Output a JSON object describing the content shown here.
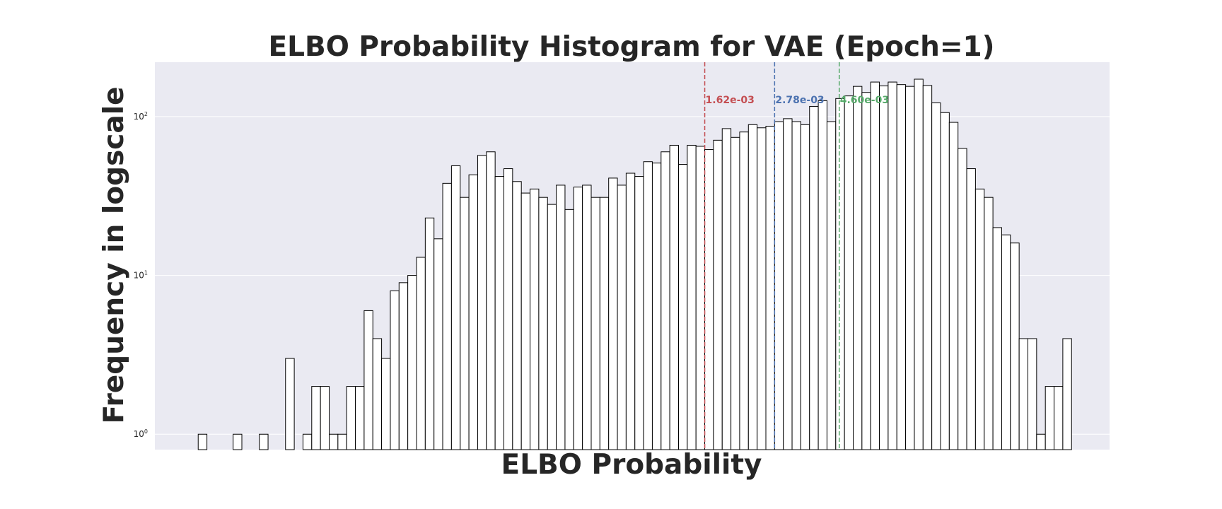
{
  "chart_data": {
    "type": "bar",
    "title": "ELBO Probability Histogram for VAE (Epoch=1)",
    "xlabel": "ELBO Probability",
    "ylabel": "Frequency in logscale",
    "y_scale": "log",
    "ylim": [
      0.8,
      220
    ],
    "y_ticks": [
      {
        "base": "10",
        "exp": "0",
        "value": 1
      },
      {
        "base": "10",
        "exp": "1",
        "value": 10
      },
      {
        "base": "10",
        "exp": "2",
        "value": 100
      }
    ],
    "grid": true,
    "background_color": "#eaeaf2",
    "bar_face_color": "#ffffff",
    "bar_edge_color": "#000000",
    "counts": [
      0,
      0,
      0,
      0,
      0,
      1,
      0,
      0,
      0,
      1,
      0,
      0,
      1,
      0,
      0,
      3,
      0,
      1,
      2,
      2,
      1,
      1,
      2,
      2,
      6,
      4,
      3,
      8,
      9,
      10,
      13,
      23,
      17,
      38,
      49,
      31,
      43,
      57,
      60,
      42,
      47,
      39,
      33,
      35,
      31,
      28,
      37,
      26,
      36,
      37,
      31,
      31,
      41,
      37,
      44,
      42,
      52,
      51,
      60,
      66,
      50,
      66,
      65,
      62,
      71,
      84,
      74,
      80,
      89,
      85,
      87,
      93,
      97,
      93,
      89,
      116,
      126,
      93,
      130,
      135,
      155,
      142,
      165,
      156,
      165,
      159,
      155,
      172,
      157,
      122,
      106,
      92,
      63,
      47,
      35,
      31,
      20,
      18,
      16,
      4,
      4,
      1,
      2,
      2,
      4,
      0,
      0,
      0,
      0,
      0
    ],
    "markers": [
      {
        "label": "1.62e-03",
        "bin_position": 63.0,
        "color": "#c44e52"
      },
      {
        "label": "2.78e-03",
        "bin_position": 71.0,
        "color": "#4c72b0"
      },
      {
        "label": "4.60e-03",
        "bin_position": 78.4,
        "color": "#55a868"
      }
    ]
  }
}
